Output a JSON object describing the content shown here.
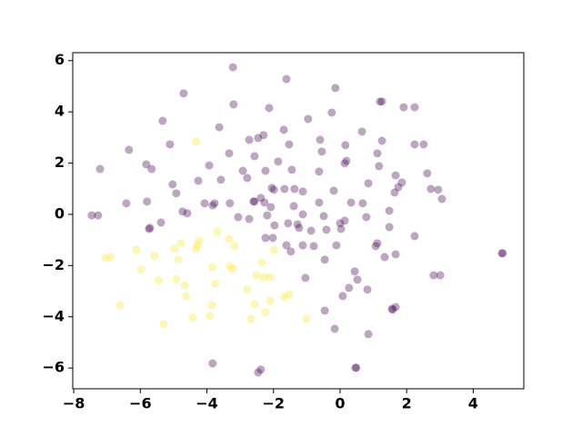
{
  "chart_data": {
    "type": "scatter",
    "opacity": 0.35,
    "xlim": [
      -8.03,
      5.52
    ],
    "ylim": [
      -6.81,
      6.31
    ],
    "xticks": [
      {
        "value": -8,
        "label": "−8"
      },
      {
        "value": -6,
        "label": "−6"
      },
      {
        "value": -4,
        "label": "−4"
      },
      {
        "value": -2,
        "label": "−2"
      },
      0,
      2,
      4
    ],
    "yticks": [
      {
        "value": -6,
        "label": "−6"
      },
      {
        "value": -4,
        "label": "−4"
      },
      {
        "value": -2,
        "label": "−2"
      },
      0,
      2,
      4,
      6
    ],
    "series": [
      {
        "color": "#440154",
        "x": [
          -7.46,
          -7.27,
          -7.21,
          -6.42,
          -6.34,
          -5.82,
          -5.66,
          -5.8,
          -5.74,
          -5.71,
          -5.38,
          -5.33,
          -5.11,
          -5.03,
          -4.92,
          -4.73,
          -4.7,
          -4.59,
          -4.26,
          -4.07,
          -3.93,
          -3.83,
          -3.77,
          -3.63,
          -3.58,
          -3.83,
          -3.33,
          -3.31,
          -3.22,
          -3.2,
          -3.06,
          -2.92,
          -2.79,
          -2.73,
          -2.73,
          -2.57,
          -2.57,
          -2.6,
          -2.46,
          -2.3,
          -2.38,
          -2.38,
          -2.46,
          -2.27,
          -2.24,
          -2.19,
          -2.24,
          -2.13,
          -2.02,
          -2.05,
          -1.99,
          -2.08,
          -1.97,
          -1.86,
          -1.69,
          -1.53,
          -1.67,
          -1.61,
          -1.56,
          -1.61,
          -1.48,
          -1.45,
          -1.39,
          -1.37,
          -1.28,
          -1.23,
          -1.12,
          -1.12,
          -1.12,
          -1.04,
          -0.96,
          -0.87,
          -0.79,
          -0.63,
          -0.63,
          -0.6,
          -0.55,
          -0.49,
          -0.41,
          -0.46,
          -0.46,
          -0.25,
          -0.16,
          -0.19,
          -0.14,
          -0.11,
          0.0,
          0.03,
          0.08,
          0.14,
          0.14,
          0.16,
          0.19,
          0.27,
          0.33,
          0.44,
          0.46,
          0.49,
          0.52,
          0.66,
          0.68,
          0.79,
          0.82,
          0.85,
          0.85,
          1.07,
          1.12,
          1.12,
          1.17,
          1.2,
          1.26,
          1.26,
          1.34,
          1.48,
          1.48,
          1.56,
          1.58,
          1.64,
          1.67,
          1.67,
          1.67,
          1.75,
          1.86,
          1.91,
          2.24,
          2.24,
          2.24,
          2.51,
          2.62,
          2.73,
          2.81,
          2.95,
          3.01,
          3.06,
          4.89,
          4.86
        ],
        "y": [
          -0.04,
          -0.04,
          1.77,
          0.43,
          2.52,
          1.95,
          1.77,
          0.5,
          -0.57,
          -0.53,
          -0.32,
          3.65,
          2.73,
          1.17,
          0.82,
          0.11,
          4.72,
          0.04,
          1.31,
          0.43,
          1.91,
          0.35,
          0.43,
          3.4,
          1.35,
          -5.82,
          2.38,
          0.43,
          5.74,
          4.29,
          -0.11,
          1.7,
          1.42,
          2.91,
          -0.18,
          0.5,
          2.27,
          0.5,
          2.98,
          3.09,
          0.64,
          -6.06,
          -6.17,
          0.46,
          1.7,
          -0.04,
          -0.92,
          4.15,
          -0.92,
          1.03,
          0.96,
          0.28,
          -0.43,
          2.06,
          3.3,
          2.73,
          0.99,
          5.28,
          -0.35,
          -1.21,
          -1.45,
          1.74,
          0.32,
          0.99,
          -0.39,
          -0.53,
          0.89,
          0.0,
          -1.21,
          -2.48,
          3.72,
          -0.64,
          -1.24,
          0.46,
          1.67,
          2.91,
          2.45,
          -0.07,
          -0.6,
          -3.76,
          -1.77,
          3.97,
          -4.47,
          0.92,
          4.93,
          -1.21,
          -0.35,
          -0.57,
          -3.19,
          -0.25,
          1.99,
          2.7,
          2.09,
          -2.87,
          0.46,
          -2.23,
          -5.99,
          -5.99,
          -2.55,
          3.23,
          0.43,
          -0.11,
          -2.94,
          -4.68,
          1.21,
          -1.24,
          2.38,
          -1.13,
          1.88,
          4.4,
          4.4,
          2.87,
          -1.67,
          -0.5,
          0.14,
          -3.69,
          -3.72,
          0.85,
          1.52,
          -3.62,
          -1.56,
          1.06,
          1.24,
          4.18,
          4.18,
          2.73,
          -0.85,
          2.73,
          1.6,
          0.99,
          -2.38,
          0.96,
          -2.38,
          0.6,
          -1.52,
          -1.52
        ]
      },
      {
        "color": "#fde725",
        "x": [
          -4.32,
          -7.05,
          -6.89,
          -6.12,
          -5.98,
          -6.61,
          -5.57,
          -5.44,
          -5.3,
          -4.97,
          -4.86,
          -4.78,
          -4.92,
          -4.67,
          -4.62,
          -4.43,
          -4.29,
          -4.32,
          -4.23,
          -3.83,
          -3.85,
          -3.91,
          -3.74,
          -3.69,
          -3.33,
          -3.17,
          -3.31,
          -3.22,
          -2.79,
          -2.68,
          -2.57,
          -2.51,
          -2.35,
          -2.3,
          -2.24,
          -2.1,
          -2.1,
          -1.99,
          -1.67,
          -1.53,
          -1.01
        ],
        "y": [
          2.84,
          -1.7,
          -1.67,
          -1.38,
          -2.16,
          -3.55,
          -1.63,
          -2.59,
          -4.29,
          -1.35,
          -1.77,
          -1.13,
          -2.52,
          -2.77,
          -3.19,
          -4.04,
          -1.21,
          -1.35,
          -1.03,
          -2.06,
          -3.55,
          -3.97,
          -2.7,
          -0.67,
          -0.96,
          -1.24,
          -2.02,
          -2.13,
          -2.94,
          -4.08,
          -3.51,
          -2.38,
          -1.88,
          -2.45,
          -3.83,
          -2.45,
          -3.37,
          -1.38,
          -3.23,
          -3.12,
          -4.08
        ]
      }
    ]
  }
}
